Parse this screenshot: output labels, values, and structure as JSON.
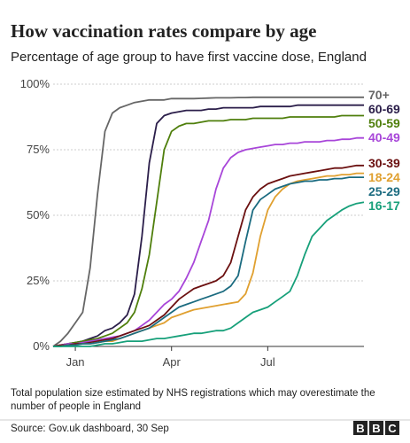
{
  "chart_data": {
    "type": "line",
    "title": "How vaccination rates compare by age",
    "subtitle": "Percentage of age group to have first vaccine dose, England",
    "footnote": [
      "Total population size estimated by NHS registrations which may overestimate the",
      "number of people in England"
    ],
    "source": "Source: Gov.uk dashboard, 30 Sep",
    "logo": [
      "B",
      "B",
      "C"
    ],
    "categories": [
      null,
      null,
      null,
      "Jan",
      null,
      null,
      null,
      null,
      null,
      null,
      null,
      null,
      null,
      null,
      null,
      null,
      "Apr",
      null,
      null,
      null,
      null,
      null,
      null,
      null,
      null,
      null,
      null,
      null,
      null,
      "Jul",
      null,
      null,
      null,
      null,
      null,
      null,
      null,
      null,
      null,
      null,
      null,
      null,
      null
    ],
    "ylim": [
      0,
      100
    ],
    "yticks": [
      {
        "value": 0,
        "label": "0%"
      },
      {
        "value": 25,
        "label": "25%"
      },
      {
        "value": 50,
        "label": "50%"
      },
      {
        "value": 75,
        "label": "75%"
      },
      {
        "value": 100,
        "label": "100%"
      }
    ],
    "grid": true,
    "series": [
      {
        "name": "70+",
        "color": "#666666",
        "values": [
          0,
          2,
          5,
          9,
          13,
          30,
          58,
          82,
          89,
          91,
          92,
          93,
          93.5,
          94,
          94,
          94,
          94.5,
          94.5,
          94.5,
          94.5,
          94.6,
          94.7,
          94.8,
          94.8,
          94.8,
          94.9,
          94.9,
          95,
          95,
          95,
          95,
          95,
          95,
          95,
          95,
          95,
          95,
          95,
          95,
          95,
          95,
          95,
          95
        ]
      },
      {
        "name": "60-69",
        "color": "#2b1e4a",
        "values": [
          0,
          0.5,
          1,
          1.5,
          2,
          3,
          4,
          6,
          7,
          9,
          12,
          20,
          42,
          70,
          85,
          88,
          89,
          89.5,
          90,
          90,
          90,
          90.5,
          90.5,
          91,
          91,
          91,
          91,
          91,
          91.5,
          91.5,
          91.5,
          91.5,
          91.5,
          92,
          92,
          92,
          92,
          92,
          92,
          92,
          92,
          92,
          92
        ]
      },
      {
        "name": "50-59",
        "color": "#4f7f0c",
        "values": [
          0,
          0.5,
          1,
          1.5,
          2,
          2.5,
          3,
          4,
          5,
          7,
          9,
          13,
          22,
          35,
          55,
          75,
          82,
          84,
          85,
          85,
          85.5,
          86,
          86,
          86,
          86.5,
          86.5,
          86.5,
          87,
          87,
          87,
          87,
          87,
          87.5,
          87.5,
          87.5,
          87.5,
          87.5,
          87.5,
          87.5,
          88,
          88,
          88,
          88
        ]
      },
      {
        "name": "40-49",
        "color": "#a846d9",
        "values": [
          0,
          0.5,
          1,
          1,
          1.5,
          2,
          2.5,
          3,
          3.5,
          4,
          5,
          6,
          8,
          10,
          13,
          16,
          18,
          21,
          26,
          32,
          40,
          48,
          60,
          68,
          72,
          74,
          75,
          75.5,
          76,
          76.5,
          77,
          77,
          77.5,
          77.5,
          78,
          78,
          78,
          78.5,
          78.5,
          79,
          79,
          79.5,
          79.5
        ]
      },
      {
        "name": "30-39",
        "color": "#6b1010",
        "values": [
          0,
          0.5,
          0.5,
          1,
          1,
          1.5,
          2,
          2.5,
          3,
          4,
          5,
          6,
          7,
          8,
          10,
          12,
          15,
          18,
          20,
          22,
          23,
          24,
          25,
          27,
          32,
          42,
          52,
          57,
          60,
          62,
          63,
          64,
          65,
          65.5,
          66,
          66.5,
          67,
          67.5,
          68,
          68,
          68.5,
          69,
          69
        ]
      },
      {
        "name": "18-24",
        "color": "#e0a030",
        "values": [
          0,
          0,
          0.5,
          0.5,
          1,
          1,
          1.5,
          2,
          2,
          3,
          4,
          5,
          6,
          7,
          8,
          9,
          11,
          12,
          13,
          14,
          14.5,
          15,
          15.5,
          16,
          16.5,
          17,
          20,
          28,
          42,
          52,
          57,
          60,
          62,
          63,
          63.5,
          64,
          64.5,
          65,
          65,
          65.5,
          65.5,
          66,
          66
        ]
      },
      {
        "name": "25-29",
        "color": "#1b6b80",
        "values": [
          0,
          0,
          0.5,
          0.5,
          1,
          1,
          1.5,
          2,
          2.5,
          3,
          4,
          5,
          6,
          7,
          9,
          11,
          13,
          15,
          16,
          17,
          18,
          19,
          20,
          21,
          23,
          27,
          40,
          52,
          56,
          58,
          60,
          61,
          62,
          62.5,
          63,
          63,
          63.5,
          63.5,
          64,
          64,
          64.5,
          64.5,
          64.5
        ]
      },
      {
        "name": "16-17",
        "color": "#17a07a",
        "values": [
          0,
          0,
          0,
          0,
          0,
          0,
          0.5,
          1,
          1,
          1.5,
          2,
          2,
          2,
          2.5,
          3,
          3,
          3.5,
          4,
          4.5,
          5,
          5,
          5.5,
          6,
          6,
          7,
          9,
          11,
          13,
          14,
          15,
          17,
          19,
          21,
          27,
          35,
          42,
          45,
          48,
          50,
          52,
          53.5,
          54.5,
          55
        ]
      }
    ]
  }
}
